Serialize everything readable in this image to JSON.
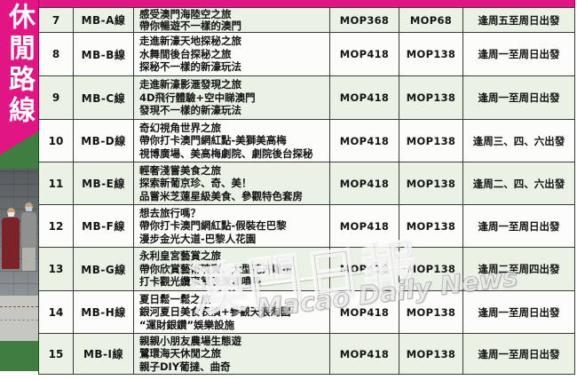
{
  "banner": {
    "text": "休閒路線"
  },
  "watermark": {
    "cn": "澳門日報",
    "en": "Macao Daily News"
  },
  "colors": {
    "banner_magenta": "#e11583",
    "ribbon_green": "#3f7d40",
    "row_green": "#e9f2e5",
    "row_white": "#fcfcfa",
    "border": "#3a3a3a"
  },
  "table": {
    "rows": [
      {
        "num": "7",
        "route": "MB-A線",
        "desc": [
          "感受澳門海陸空之旅",
          "帶你暢遊不一樣的澳門"
        ],
        "price_adult": "MOP368",
        "price_child": "MOP68",
        "schedule": "逢周五至周日出發"
      },
      {
        "num": "8",
        "route": "MB-B線",
        "desc": [
          "走進新濠天地探秘之旅",
          "水舞間後台探秘之旅",
          "探秘不一樣的新濠玩法"
        ],
        "price_adult": "MOP418",
        "price_child": "MOP138",
        "schedule": "逢周一至周日出發"
      },
      {
        "num": "9",
        "route": "MB-C線",
        "desc": [
          "走進新濠影滙發現之旅",
          "4D飛行體驗+空中睇澳門",
          "發現不一樣的新濠玩法"
        ],
        "price_adult": "MOP418",
        "price_child": "MOP138",
        "schedule": "逢周一至周日出發"
      },
      {
        "num": "10",
        "route": "MB-D線",
        "desc": [
          "奇幻視角世界之旅",
          "帶你打卡澳門網紅點-美獅美高梅",
          "視博廣場、美高梅劇院、劇院後台探秘"
        ],
        "price_adult": "MOP418",
        "price_child": "MOP138",
        "schedule": "逢周三、四、六出發"
      },
      {
        "num": "11",
        "route": "MB-E線",
        "desc": [
          "輕奢淺嘗美食之旅",
          "探索新葡京珍、奇、美！",
          "品嘗米芝蓮星級美食、參觀特色套房"
        ],
        "price_adult": "MOP418",
        "price_child": "MOP138",
        "schedule": "逢周二、四、六出發"
      },
      {
        "num": "12",
        "route": "MB-F線",
        "desc": [
          "想去旅行嗎？",
          "帶你打卡澳門網紅點-假裝在巴黎",
          "漫步金光大道-巴黎人花園"
        ],
        "price_adult": "MOP418",
        "price_child": "MOP138",
        "schedule": "逢周一至周日出發"
      },
      {
        "num": "13",
        "route": "MB-G線",
        "desc": [
          "永利皇宮藝賞之旅",
          "帶你欣賞藝術瑰寶、大型花卉雕塑",
          "打卡觀光纜車賞表演湖噴泉"
        ],
        "price_adult": "MOP418",
        "price_child": "MOP138",
        "schedule": "逢周二至周四出發"
      },
      {
        "num": "14",
        "route": "MB-H線",
        "desc": [
          "夏日鬆一鬆之旅",
          "銀河夏日美食表演+參觀天浪淘園",
          "“運財銀鑽”娛樂設施"
        ],
        "price_adult": "MOP418",
        "price_child": "MOP138",
        "schedule": "逢周一至周日出發"
      },
      {
        "num": "15",
        "route": "MB-I線",
        "desc": [
          "親親小朋友農場生態遊",
          "鷺環海天休閒之旅",
          "親子DIY葡撻、曲奇"
        ],
        "price_adult": "MOP418",
        "price_child": "MOP138",
        "schedule": "逢周一至周日出發"
      }
    ]
  }
}
